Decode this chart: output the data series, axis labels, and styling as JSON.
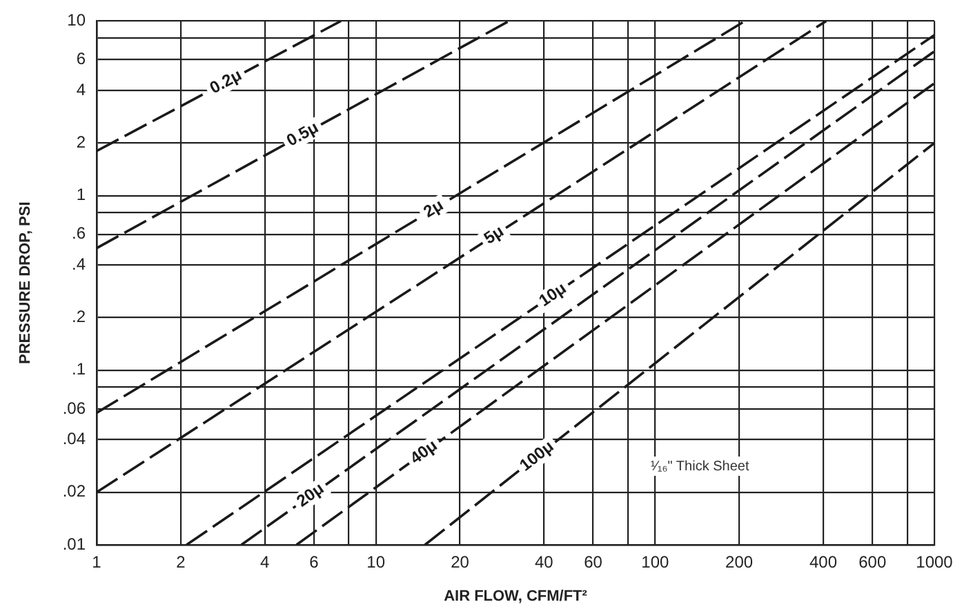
{
  "chart_data": {
    "type": "line",
    "xlabel": "AIR FLOW, CFM/FT²",
    "ylabel": "PRESSURE DROP, PSI",
    "log": "xy",
    "xlim": [
      1,
      1000
    ],
    "ylim": [
      0.01,
      10
    ],
    "xticks": [
      1,
      2,
      4,
      6,
      {
        "value": 8,
        "label": null
      },
      10,
      20,
      40,
      60,
      {
        "value": 80,
        "label": null
      },
      100,
      200,
      400,
      600,
      {
        "value": 800,
        "label": null
      },
      1000
    ],
    "yticks": [
      {
        "value": 0.01,
        "label": ".01"
      },
      {
        "value": 0.02,
        "label": ".02"
      },
      {
        "value": 0.04,
        "label": ".04"
      },
      {
        "value": 0.06,
        "label": ".06"
      },
      {
        "value": 0.08,
        "label": null
      },
      {
        "value": 0.1,
        "label": ".1"
      },
      {
        "value": 0.2,
        "label": ".2"
      },
      {
        "value": 0.4,
        "label": ".4"
      },
      {
        "value": 0.6,
        "label": ".6"
      },
      {
        "value": 0.8,
        "label": null
      },
      1,
      2,
      4,
      6,
      {
        "value": 8,
        "label": null
      },
      10
    ],
    "grid": true,
    "line_style": "dashed",
    "marker": "none",
    "series": [
      {
        "name": "0.2μ",
        "color": "#1a1a1a",
        "x": [
          1,
          7.5
        ],
        "values": [
          1.8,
          10
        ]
      },
      {
        "name": "0.5μ",
        "color": "#1a1a1a",
        "x": [
          1,
          30
        ],
        "values": [
          0.5,
          10
        ]
      },
      {
        "name": "2μ",
        "color": "#1a1a1a",
        "x": [
          1,
          210
        ],
        "values": [
          0.057,
          10
        ]
      },
      {
        "name": "5μ",
        "color": "#1a1a1a",
        "x": [
          1,
          410
        ],
        "values": [
          0.02,
          10
        ]
      },
      {
        "name": "10μ",
        "color": "#1a1a1a",
        "x": [
          2.1,
          1000
        ],
        "values": [
          0.01,
          8.3
        ]
      },
      {
        "name": "20μ",
        "color": "#1a1a1a",
        "x": [
          3.3,
          1000
        ],
        "values": [
          0.01,
          6.7
        ]
      },
      {
        "name": "40μ",
        "color": "#1a1a1a",
        "x": [
          5.2,
          1000
        ],
        "values": [
          0.01,
          4.4
        ]
      },
      {
        "name": "100μ",
        "color": "#1a1a1a",
        "x": [
          15,
          1000
        ],
        "values": [
          0.01,
          2
        ]
      }
    ],
    "annotations": [
      "¹⁄₁₆\" Thick Sheet"
    ]
  }
}
